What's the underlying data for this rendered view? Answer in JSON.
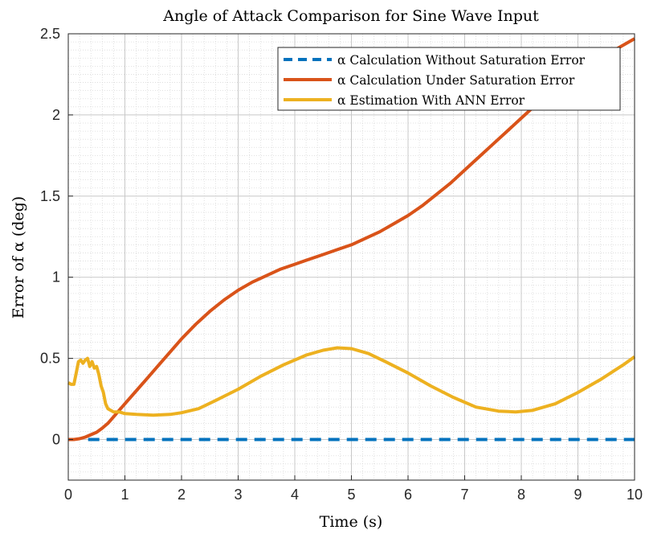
{
  "chart_data": {
    "type": "line",
    "title": "Angle of Attack Comparison for Sine Wave Input",
    "xlabel": "Time (s)",
    "ylabel": "Error of α (deg)",
    "xlim": [
      0,
      10
    ],
    "ylim": [
      -0.25,
      2.5
    ],
    "xticks": [
      "0",
      "1",
      "2",
      "3",
      "4",
      "5",
      "6",
      "7",
      "8",
      "9",
      "10"
    ],
    "yticks": [
      "0",
      "0.5",
      "1",
      "1.5",
      "2",
      "2.5"
    ],
    "grid": true,
    "minor_grid": true,
    "legend_position": "top-right",
    "series": [
      {
        "name": "α Calculation Without Saturation Error",
        "color": "#0072BD",
        "style": "dashed",
        "x": [
          0.35,
          10
        ],
        "y": [
          0,
          0
        ]
      },
      {
        "name": "α Calculation Under Saturation Error",
        "color": "#D95319",
        "style": "solid",
        "x": [
          0,
          0.1,
          0.2,
          0.3,
          0.4,
          0.5,
          0.6,
          0.7,
          0.8,
          0.9,
          1.0,
          1.2,
          1.4,
          1.6,
          1.8,
          2.0,
          2.25,
          2.5,
          2.75,
          3.0,
          3.25,
          3.5,
          3.75,
          4.0,
          4.25,
          4.5,
          4.75,
          5.0,
          5.25,
          5.5,
          5.75,
          6.0,
          6.25,
          6.5,
          6.75,
          7.0,
          7.25,
          7.5,
          7.75,
          8.0,
          8.25,
          8.5,
          8.75,
          9.0,
          9.25,
          9.5,
          9.75,
          10.0
        ],
        "y": [
          0.0,
          0.0,
          0.005,
          0.015,
          0.03,
          0.045,
          0.07,
          0.1,
          0.14,
          0.18,
          0.22,
          0.3,
          0.38,
          0.46,
          0.54,
          0.62,
          0.71,
          0.79,
          0.86,
          0.92,
          0.97,
          1.01,
          1.05,
          1.08,
          1.11,
          1.14,
          1.17,
          1.2,
          1.24,
          1.28,
          1.33,
          1.38,
          1.44,
          1.51,
          1.58,
          1.66,
          1.74,
          1.82,
          1.9,
          1.98,
          2.06,
          2.13,
          2.2,
          2.26,
          2.32,
          2.37,
          2.42,
          2.47
        ]
      },
      {
        "name": "α Estimation With ANN Error",
        "color": "#EDB120",
        "style": "solid",
        "x": [
          0.0,
          0.05,
          0.1,
          0.14,
          0.18,
          0.22,
          0.26,
          0.3,
          0.34,
          0.38,
          0.42,
          0.46,
          0.5,
          0.54,
          0.58,
          0.62,
          0.66,
          0.7,
          0.75,
          0.8,
          0.9,
          1.0,
          1.2,
          1.5,
          1.8,
          2.0,
          2.3,
          2.6,
          3.0,
          3.4,
          3.8,
          4.2,
          4.5,
          4.75,
          5.0,
          5.3,
          5.6,
          6.0,
          6.4,
          6.8,
          7.2,
          7.6,
          7.9,
          8.2,
          8.6,
          9.0,
          9.4,
          9.8,
          10.0
        ],
        "y": [
          0.35,
          0.34,
          0.34,
          0.41,
          0.48,
          0.49,
          0.47,
          0.49,
          0.5,
          0.45,
          0.48,
          0.44,
          0.45,
          0.4,
          0.33,
          0.29,
          0.22,
          0.19,
          0.18,
          0.17,
          0.17,
          0.16,
          0.155,
          0.15,
          0.155,
          0.165,
          0.19,
          0.24,
          0.31,
          0.39,
          0.46,
          0.52,
          0.55,
          0.565,
          0.56,
          0.53,
          0.48,
          0.41,
          0.33,
          0.26,
          0.2,
          0.175,
          0.17,
          0.18,
          0.22,
          0.29,
          0.37,
          0.46,
          0.51
        ]
      }
    ]
  }
}
